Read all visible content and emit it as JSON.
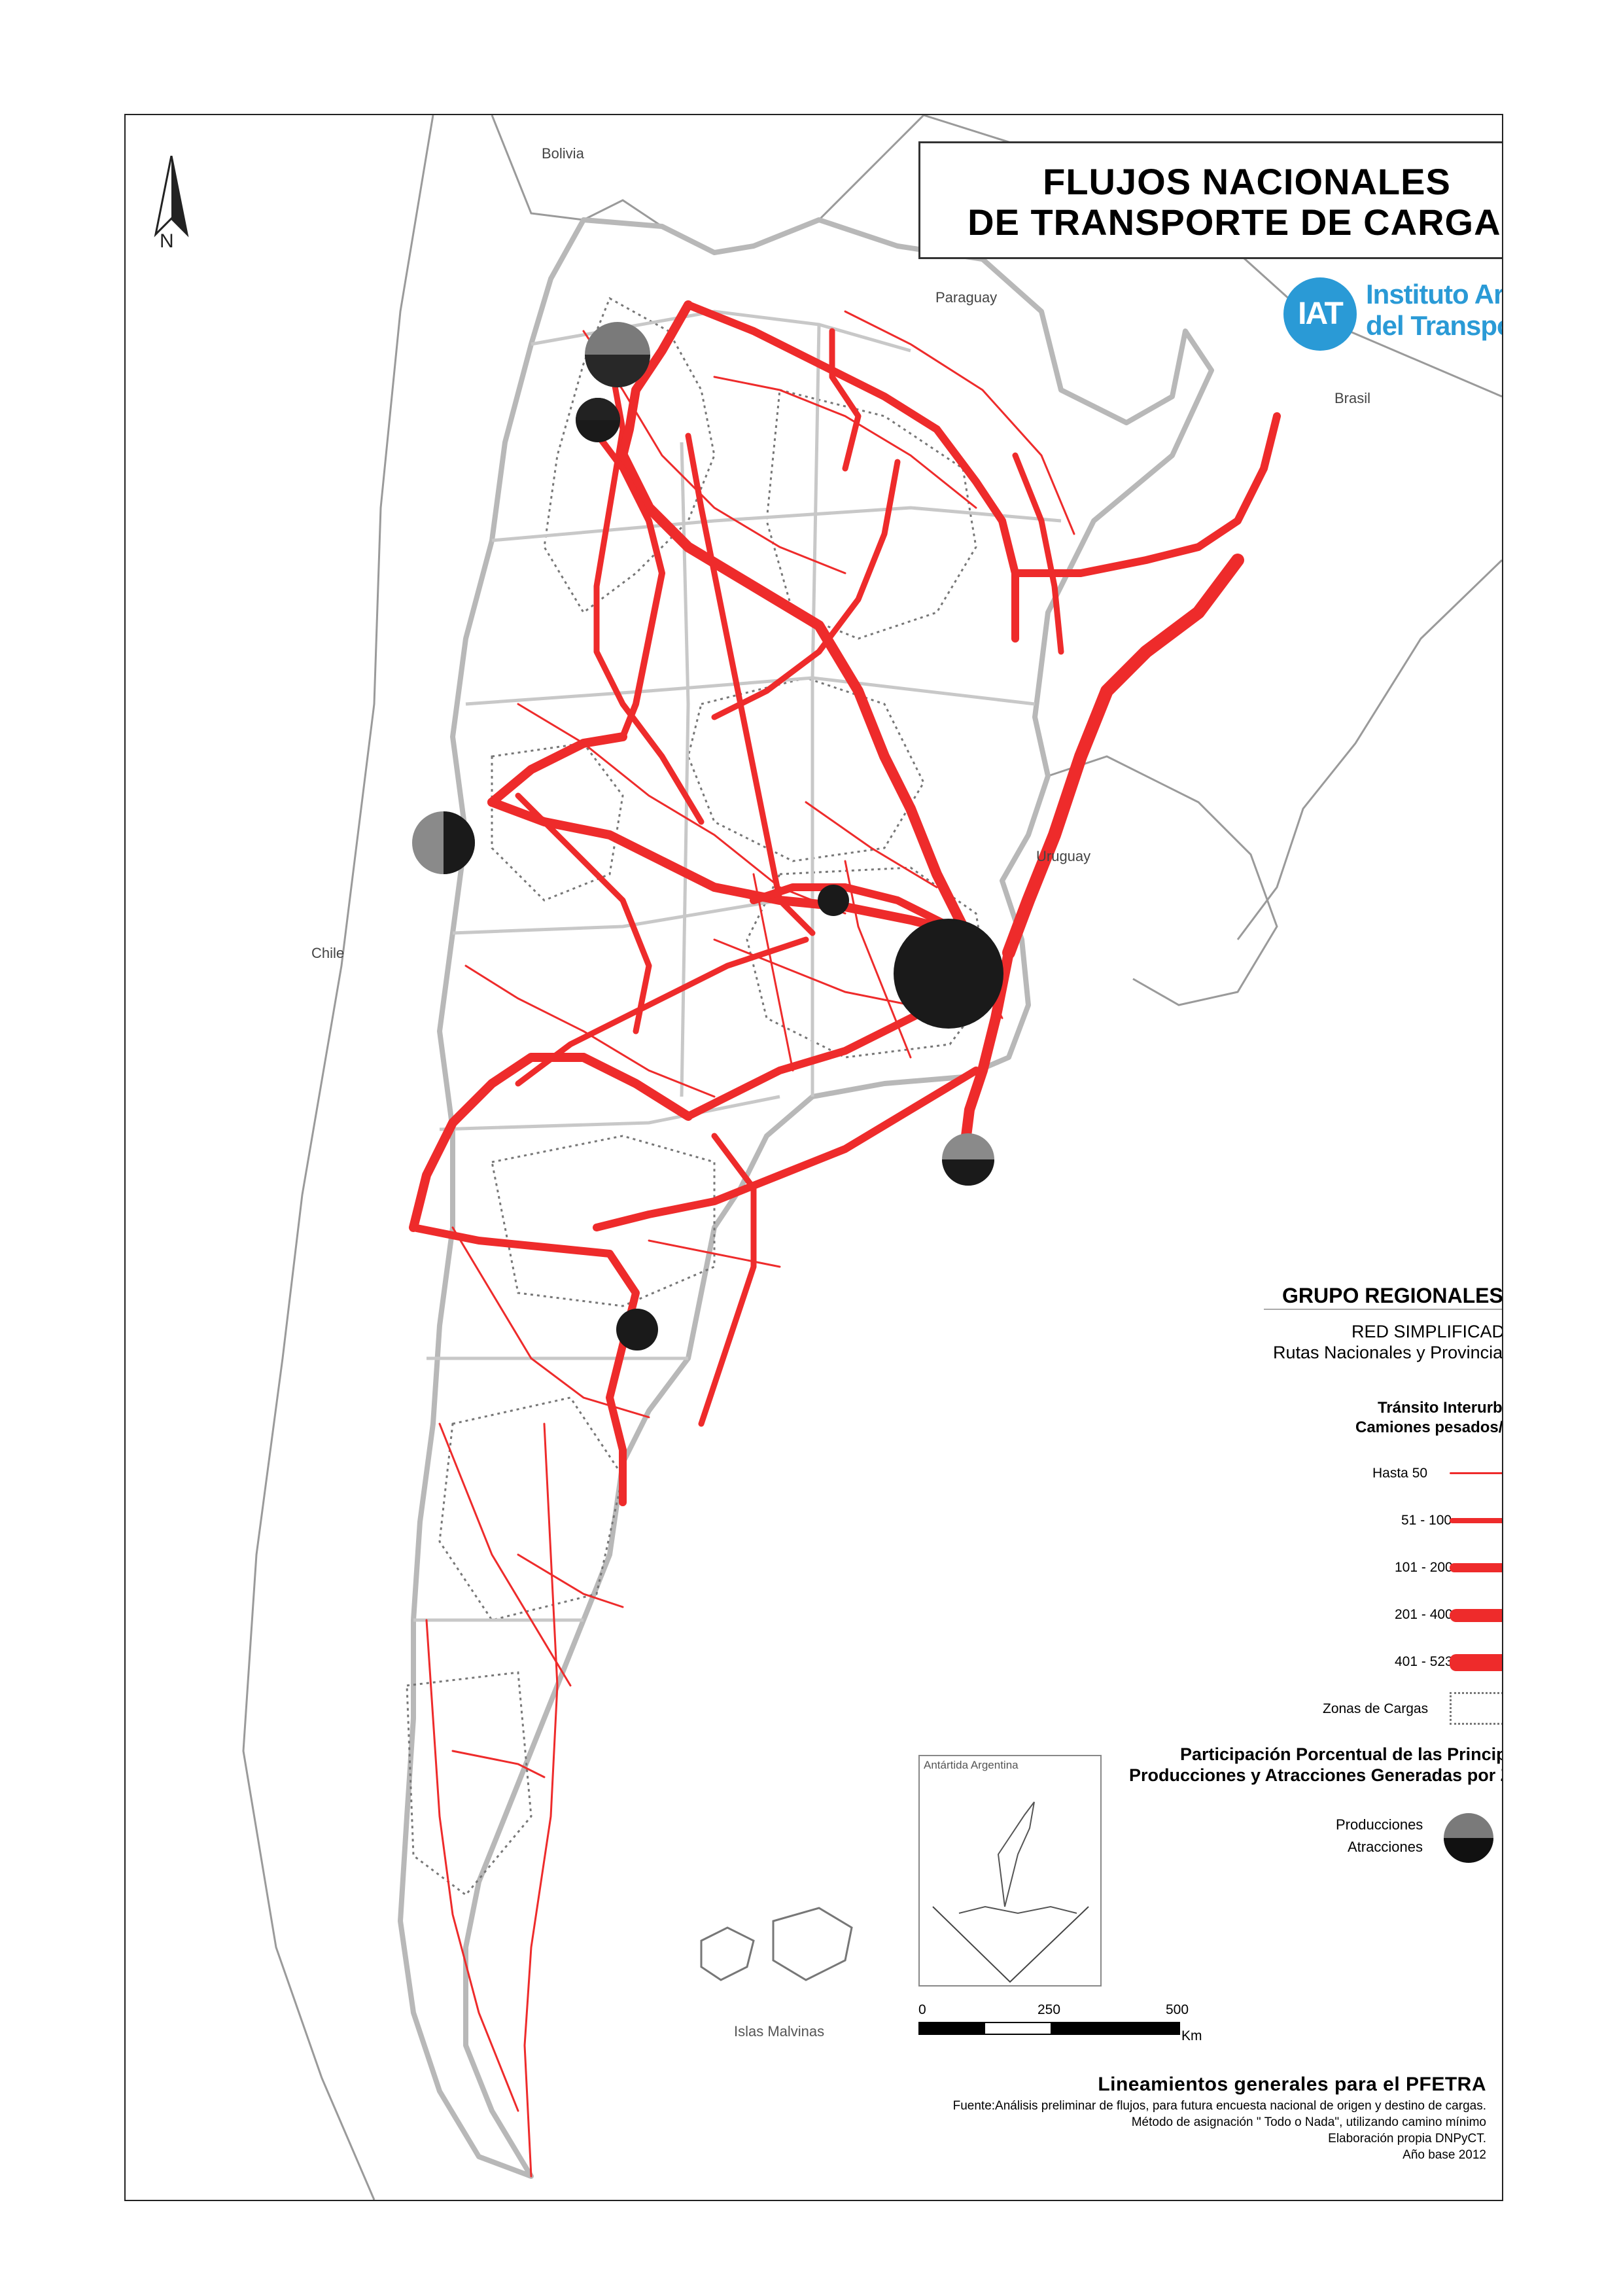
{
  "title": {
    "line1": "FLUJOS NACIONALES",
    "line2": "DE TRANSPORTE DE CARGAS"
  },
  "logo": {
    "abbr": "IAT",
    "name_line1": "Instituto Argentino",
    "name_line2": "del Transporte",
    "color": "#2a9ad6"
  },
  "north": {
    "letter": "N"
  },
  "countries": {
    "bolivia": "Bolivia",
    "paraguay": "Paraguay",
    "brasil": "Brasil",
    "uruguay": "Uruguay",
    "chile": "Chile"
  },
  "legend": {
    "group_title": "GRUPO REGIONALES",
    "network_title": "RED SIMPLIFICADA",
    "network_subtitle": "Rutas Nacionales y Provinciales",
    "traffic_title_line1": "Tránsito  Interurbano",
    "traffic_title_line2": "Camiones pesados/día",
    "classes": [
      {
        "label": "Hasta  50"
      },
      {
        "label": "51 - 100"
      },
      {
        "label": "101 - 200"
      },
      {
        "label": "201 - 400"
      },
      {
        "label": "401 - 523"
      }
    ],
    "zones_label": "Zonas de Cargas",
    "share_title_line1": "Participación Porcentual de las Principales",
    "share_title_line2": "Producciones y Atracciones Generadas por Zona",
    "producciones": "Producciones",
    "atracciones": "Atracciones",
    "flow_color": "#ee2b2b"
  },
  "inset": {
    "antartida": "Antártida Argentina",
    "malvinas": "Islas Malvinas"
  },
  "scale": {
    "ticks": [
      "0",
      "250",
      "500"
    ],
    "units": "Km"
  },
  "credits": {
    "title": "Lineamientos generales para el PFETRA",
    "line1": "Fuente:Análisis preliminar de flujos, para futura encuesta nacional de origen y destino de cargas.",
    "line2": "Método de asignación \" Todo o Nada\", utilizando camino mínimo",
    "line3": "Elaboración propia DNPyCT.",
    "line4": "Año base 2012"
  }
}
